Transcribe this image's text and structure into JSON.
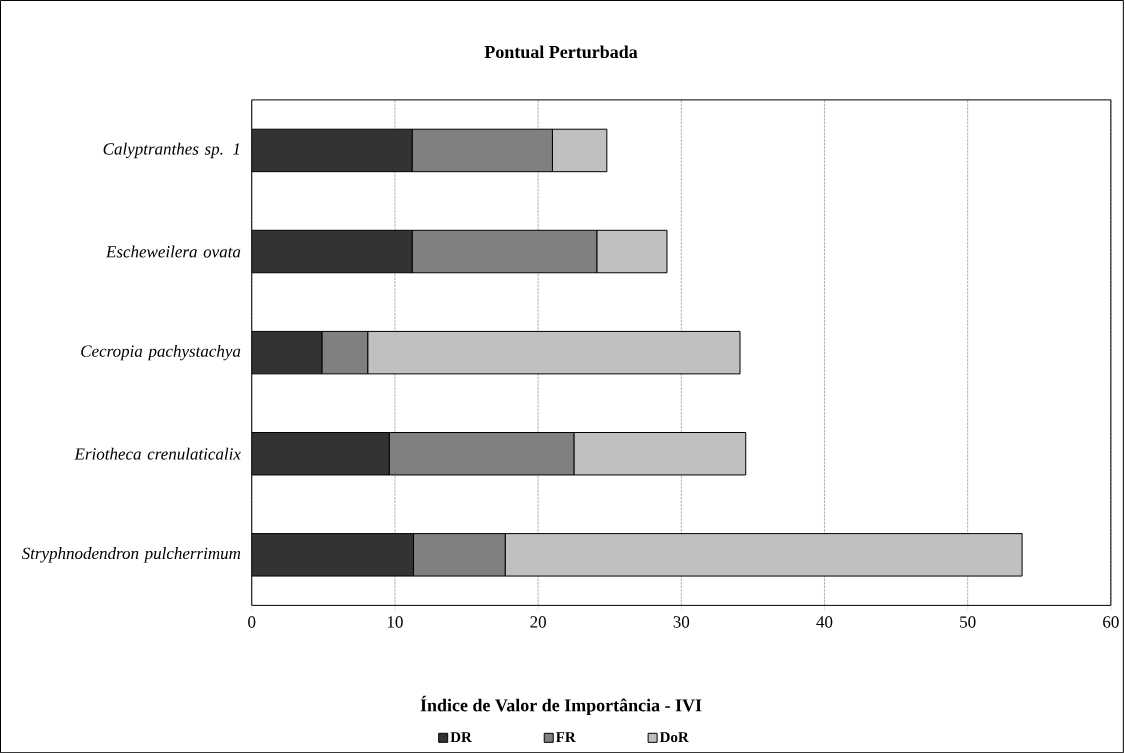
{
  "chart_data": {
    "type": "bar",
    "orientation": "horizontal",
    "stacked": true,
    "title": "Pontual Perturbada",
    "xlabel": "Índice de Valor de Importância - IVI",
    "categories": [
      "Calyptranthes sp. 1",
      "Escheweilera ovata",
      "Cecropia pachystachya",
      "Eriotheca crenulaticalix",
      "Stryphnodendron pulcherrimum"
    ],
    "series": [
      {
        "name": "DR",
        "color": "#333333",
        "values": [
          11.2,
          11.2,
          4.9,
          9.6,
          11.3
        ]
      },
      {
        "name": "FR",
        "color": "#808080",
        "values": [
          9.8,
          12.9,
          3.2,
          12.9,
          6.4
        ]
      },
      {
        "name": "DoR",
        "color": "#c0c0c0",
        "values": [
          3.8,
          4.9,
          26.0,
          12.0,
          36.1
        ]
      }
    ],
    "xlim": [
      0,
      60
    ],
    "xticks": [
      0,
      10,
      20,
      30,
      40,
      50,
      60
    ],
    "grid": "x",
    "legend": "bottom"
  }
}
